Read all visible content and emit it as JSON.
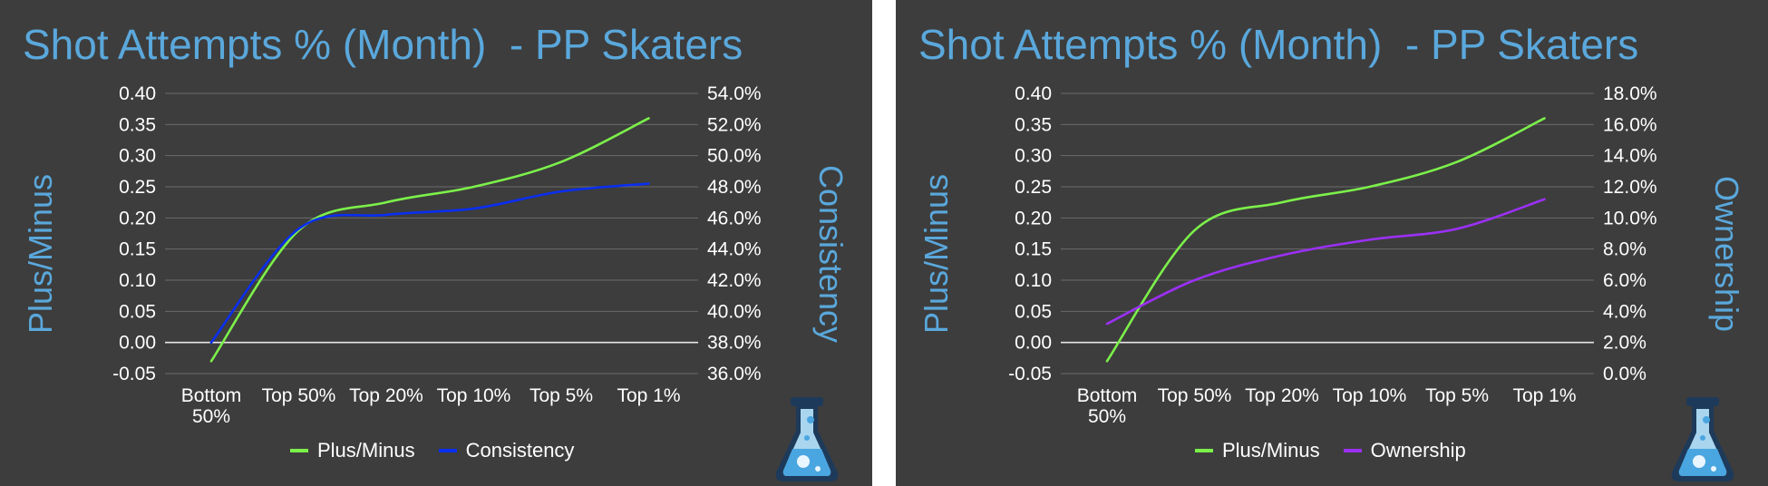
{
  "panels": [
    {
      "title": "Shot Attempts % (Month)  - PP Skaters",
      "y_left_title": "Plus/Minus",
      "y_right_title": "Consistency",
      "legend": [
        {
          "label": "Plus/Minus",
          "color": "#7cf04a"
        },
        {
          "label": "Consistency",
          "color": "#0a2ef0"
        }
      ],
      "icon": "flask-icon"
    },
    {
      "title": "Shot Attempts % (Month)  - PP Skaters",
      "y_left_title": "Plus/Minus",
      "y_right_title": "Ownership",
      "legend": [
        {
          "label": "Plus/Minus",
          "color": "#7cf04a"
        },
        {
          "label": "Ownership",
          "color": "#9b30f5"
        }
      ],
      "icon": "flask-icon"
    }
  ],
  "chart_data": [
    {
      "type": "line",
      "title": "Shot Attempts % (Month)  - PP Skaters",
      "categories": [
        "Bottom 50%",
        "Top 50%",
        "Top 20%",
        "Top 10%",
        "Top 5%",
        "Top 1%"
      ],
      "y_left": {
        "label": "Plus/Minus",
        "range": [
          -0.05,
          0.4
        ],
        "ticks": [
          "-0.05",
          "0.00",
          "0.05",
          "0.10",
          "0.15",
          "0.20",
          "0.25",
          "0.30",
          "0.35",
          "0.40"
        ]
      },
      "y_right": {
        "label": "Consistency",
        "range": [
          36.0,
          54.0
        ],
        "ticks": [
          "36.0%",
          "38.0%",
          "40.0%",
          "42.0%",
          "44.0%",
          "46.0%",
          "48.0%",
          "50.0%",
          "52.0%",
          "54.0%"
        ]
      },
      "series": [
        {
          "name": "Plus/Minus",
          "axis": "left",
          "color": "#7cf04a",
          "values": [
            -0.03,
            0.18,
            0.225,
            0.25,
            0.29,
            0.36
          ]
        },
        {
          "name": "Consistency",
          "axis": "right",
          "color": "#0a2ef0",
          "values": [
            38.0,
            45.3,
            46.2,
            46.6,
            47.7,
            48.2
          ]
        }
      ],
      "grid": true,
      "legend_position": "bottom"
    },
    {
      "type": "line",
      "title": "Shot Attempts % (Month)  - PP Skaters",
      "categories": [
        "Bottom 50%",
        "Top 50%",
        "Top 20%",
        "Top 10%",
        "Top 5%",
        "Top 1%"
      ],
      "y_left": {
        "label": "Plus/Minus",
        "range": [
          -0.05,
          0.4
        ],
        "ticks": [
          "-0.05",
          "0.00",
          "0.05",
          "0.10",
          "0.15",
          "0.20",
          "0.25",
          "0.30",
          "0.35",
          "0.40"
        ]
      },
      "y_right": {
        "label": "Ownership",
        "range": [
          0.0,
          18.0
        ],
        "ticks": [
          "0.0%",
          "2.0%",
          "4.0%",
          "6.0%",
          "8.0%",
          "10.0%",
          "12.0%",
          "14.0%",
          "16.0%",
          "18.0%"
        ]
      },
      "series": [
        {
          "name": "Plus/Minus",
          "axis": "left",
          "color": "#7cf04a",
          "values": [
            -0.03,
            0.18,
            0.225,
            0.25,
            0.29,
            0.36
          ]
        },
        {
          "name": "Ownership",
          "axis": "right",
          "color": "#9b30f5",
          "values": [
            3.2,
            6.0,
            7.6,
            8.6,
            9.3,
            11.2
          ]
        }
      ],
      "grid": true,
      "legend_position": "bottom"
    }
  ]
}
